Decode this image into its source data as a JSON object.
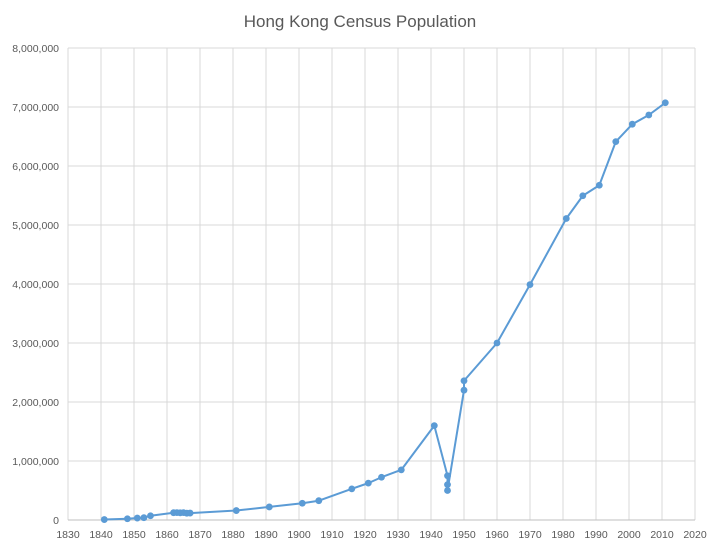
{
  "chart_data": {
    "type": "line",
    "title": "Hong Kong Census Population",
    "xlabel": "",
    "ylabel": "",
    "xlim": [
      1830,
      2020
    ],
    "ylim": [
      0,
      8000000
    ],
    "x_ticks": [
      "1830",
      "1840",
      "1850",
      "1860",
      "1870",
      "1880",
      "1890",
      "1900",
      "1910",
      "1920",
      "1930",
      "1940",
      "1950",
      "1960",
      "1970",
      "1980",
      "1990",
      "2000",
      "2010",
      "2020"
    ],
    "y_ticks": [
      "0",
      "1,000,000",
      "2,000,000",
      "3,000,000",
      "4,000,000",
      "5,000,000",
      "6,000,000",
      "7,000,000",
      "8,000,000"
    ],
    "grid": true,
    "legend": "none",
    "series": [
      {
        "color": "#5b9bd5",
        "points": [
          [
            1841,
            7450
          ],
          [
            1848,
            21514
          ],
          [
            1851,
            32983
          ],
          [
            1853,
            39017
          ],
          [
            1855,
            72607
          ],
          [
            1862,
            123511
          ],
          [
            1863,
            124850
          ],
          [
            1864,
            121498
          ],
          [
            1865,
            125504
          ],
          [
            1866,
            115098
          ],
          [
            1867,
            117471
          ],
          [
            1881,
            160402
          ],
          [
            1891,
            221441
          ],
          [
            1901,
            283975
          ],
          [
            1906,
            326961
          ],
          [
            1916,
            528010
          ],
          [
            1921,
            625166
          ],
          [
            1925,
            725000
          ],
          [
            1931,
            849751
          ],
          [
            1941,
            1600000
          ],
          [
            1945,
            750000
          ],
          [
            1945,
            600000
          ],
          [
            1945,
            500000
          ],
          [
            1950,
            2200000
          ],
          [
            1950,
            2360000
          ],
          [
            1960,
            3000000
          ],
          [
            1970,
            3990000
          ],
          [
            1981,
            5109812
          ],
          [
            1986,
            5495488
          ],
          [
            1991,
            5674114
          ],
          [
            1996,
            6412937
          ],
          [
            2001,
            6708389
          ],
          [
            2006,
            6864346
          ],
          [
            2011,
            7071576
          ]
        ]
      }
    ]
  }
}
